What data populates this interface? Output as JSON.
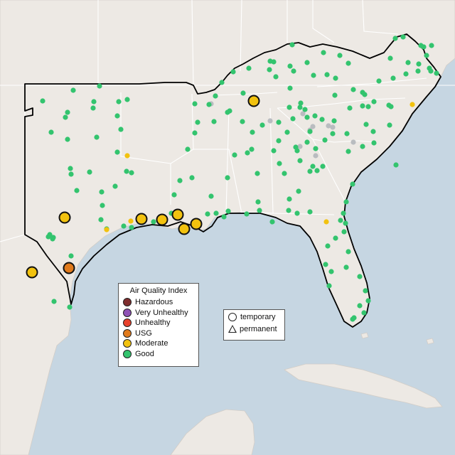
{
  "map": {
    "colors": {
      "water": "#c6d6e2",
      "land": "#ede9e4",
      "boundary": "#ffffff",
      "highlight_outline": "#000000"
    }
  },
  "aqi_legend": {
    "title": "Air Quality Index",
    "items": [
      {
        "label": "Hazardous",
        "color": "#7e2d2d"
      },
      {
        "label": "Very Unhealthy",
        "color": "#8f52b5"
      },
      {
        "label": "Unhealthy",
        "color": "#e8412c"
      },
      {
        "label": "USG",
        "color": "#e07a1c"
      },
      {
        "label": "Moderate",
        "color": "#f2c20f"
      },
      {
        "label": "Good",
        "color": "#33c46e"
      }
    ]
  },
  "site_legend": {
    "items": [
      {
        "label": "temporary",
        "icon": "circle-icon"
      },
      {
        "label": "permanent",
        "icon": "triangle-icon"
      }
    ]
  },
  "monitors": {
    "categories": [
      "Hazardous",
      "Very Unhealthy",
      "Unhealthy",
      "USG",
      "Moderate",
      "Good",
      "No data"
    ],
    "counts_visible": {
      "USG": 2,
      "Moderate": 14,
      "No data": 10
    }
  }
}
